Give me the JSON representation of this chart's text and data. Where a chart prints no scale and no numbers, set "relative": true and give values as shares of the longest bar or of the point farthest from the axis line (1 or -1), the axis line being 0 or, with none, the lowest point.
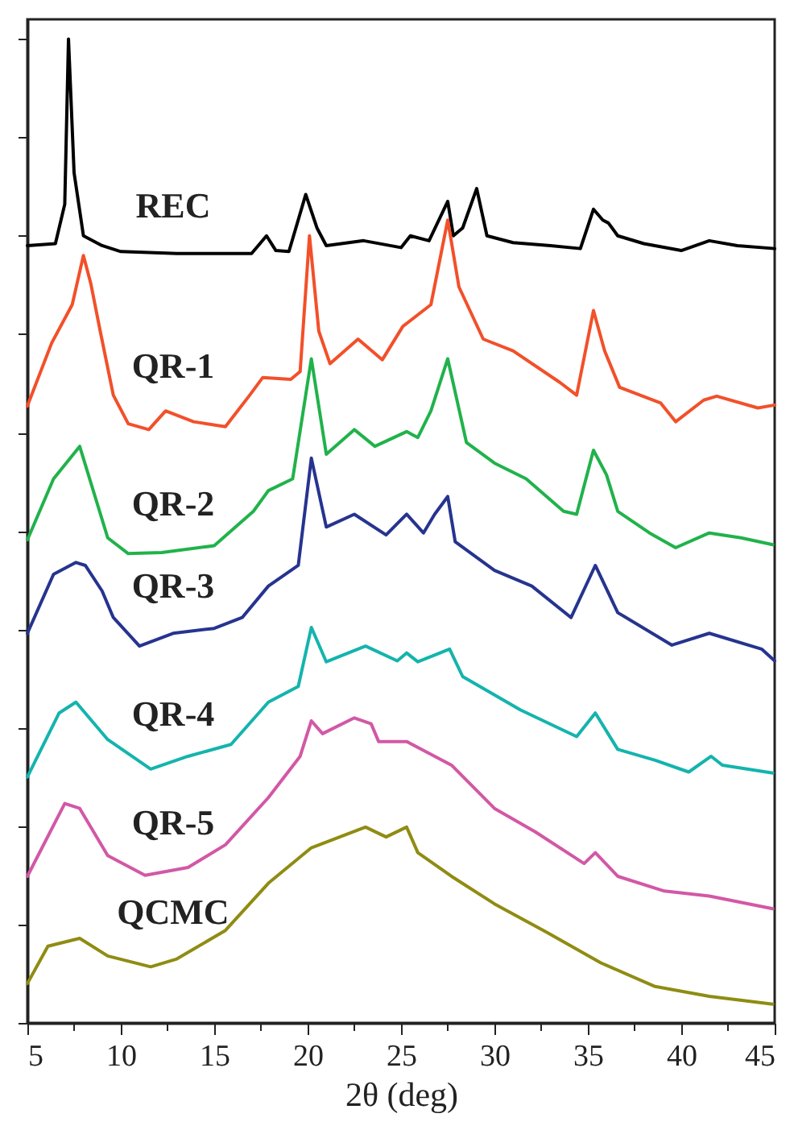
{
  "chart_data": {
    "type": "line",
    "relative": true,
    "xlabel": "2θ (deg)",
    "xlim": [
      5,
      45
    ],
    "xticks": [
      5,
      {
        "value": 7.5,
        "label": null
      },
      10,
      {
        "value": 12.5,
        "label": null
      },
      15,
      {
        "value": 17.5,
        "label": null
      },
      20,
      {
        "value": 22.5,
        "label": null
      },
      25,
      {
        "value": 27.5,
        "label": null
      },
      30,
      {
        "value": 32.5,
        "label": null
      },
      35,
      {
        "value": 37.5,
        "label": null
      },
      40,
      {
        "value": 42.5,
        "label": null
      },
      45
    ],
    "tick_labels": "x",
    "grid": false,
    "marker": "none",
    "line_style": "solid",
    "series": [
      {
        "name": "REC",
        "color": "#000000",
        "x": [
          5,
          6.5,
          7.0,
          7.2,
          7.5,
          8,
          9,
          10,
          13,
          17,
          17.8,
          18.3,
          19,
          19.9,
          20.5,
          21,
          23,
          25,
          25.5,
          26.5,
          27.5,
          27.8,
          28.3,
          29.05,
          29.6,
          31,
          33,
          34.6,
          35.3,
          35.8,
          36.1,
          36.6,
          38,
          40,
          41.5,
          43,
          45
        ],
        "values": [
          0.79,
          0.792,
          0.832,
          1.0,
          0.864,
          0.8,
          0.79,
          0.784,
          0.782,
          0.782,
          0.8,
          0.785,
          0.784,
          0.842,
          0.808,
          0.79,
          0.795,
          0.788,
          0.8,
          0.795,
          0.835,
          0.8,
          0.808,
          0.848,
          0.8,
          0.793,
          0.79,
          0.787,
          0.827,
          0.816,
          0.813,
          0.8,
          0.792,
          0.785,
          0.795,
          0.79,
          0.787
        ]
      },
      {
        "name": "QR-1",
        "color": "#f2502a",
        "x": [
          5,
          6.3,
          7.4,
          8.0,
          8.4,
          8.9,
          9.6,
          10.4,
          11.5,
          12.4,
          13.9,
          15.6,
          16.9,
          17.6,
          19.1,
          19.6,
          20.1,
          20.6,
          21.2,
          22.7,
          24.0,
          25.1,
          26.6,
          27.5,
          28.1,
          29.4,
          31.0,
          33.5,
          34.4,
          35.3,
          35.9,
          36.7,
          38.9,
          39.7,
          41.2,
          41.9,
          44.1,
          45
        ],
        "values": [
          0.627,
          0.691,
          0.73,
          0.78,
          0.751,
          0.703,
          0.638,
          0.609,
          0.603,
          0.622,
          0.611,
          0.606,
          0.638,
          0.656,
          0.654,
          0.662,
          0.8,
          0.703,
          0.67,
          0.695,
          0.674,
          0.708,
          0.73,
          0.816,
          0.748,
          0.695,
          0.683,
          0.651,
          0.638,
          0.724,
          0.683,
          0.646,
          0.63,
          0.611,
          0.633,
          0.637,
          0.625,
          0.628
        ]
      },
      {
        "name": "QR-2",
        "color": "#21b24b",
        "x": [
          5,
          6.4,
          7.8,
          9.3,
          10.4,
          12.2,
          15,
          17.1,
          17.9,
          19.2,
          20.2,
          21,
          22.5,
          23.6,
          25.3,
          25.9,
          26.6,
          27.5,
          28.5,
          30,
          31.7,
          33.7,
          34.4,
          35.3,
          36,
          36.6,
          38.3,
          39.7,
          41.5,
          43.2,
          44.9
        ],
        "values": [
          0.491,
          0.553,
          0.586,
          0.493,
          0.477,
          0.478,
          0.485,
          0.52,
          0.541,
          0.553,
          0.675,
          0.578,
          0.603,
          0.586,
          0.601,
          0.595,
          0.622,
          0.675,
          0.59,
          0.569,
          0.553,
          0.52,
          0.517,
          0.582,
          0.557,
          0.52,
          0.498,
          0.483,
          0.498,
          0.493,
          0.486
        ]
      },
      {
        "name": "QR-3",
        "color": "#26348f",
        "x": [
          5,
          6.4,
          7.6,
          8.1,
          9.0,
          9.6,
          11.0,
          12.8,
          15.0,
          16.5,
          17.9,
          19.5,
          20.2,
          21.0,
          22.5,
          24.2,
          25.3,
          26.2,
          26.8,
          27.5,
          27.9,
          30,
          32,
          34.1,
          35.4,
          36.6,
          39.5,
          41.5,
          44.3,
          45
        ],
        "values": [
          0.396,
          0.456,
          0.468,
          0.465,
          0.439,
          0.412,
          0.383,
          0.396,
          0.401,
          0.412,
          0.444,
          0.465,
          0.574,
          0.504,
          0.517,
          0.496,
          0.517,
          0.498,
          0.517,
          0.535,
          0.489,
          0.46,
          0.444,
          0.412,
          0.465,
          0.417,
          0.384,
          0.396,
          0.38,
          0.368
        ]
      },
      {
        "name": "QR-4",
        "color": "#14b4ad",
        "x": [
          5,
          6.7,
          7.6,
          9.3,
          11.6,
          13.6,
          15.9,
          17.9,
          19.5,
          20.2,
          21.0,
          23.1,
          24.8,
          25.3,
          25.9,
          27.6,
          28.3,
          31.4,
          34.4,
          35.4,
          36.6,
          38.6,
          40.4,
          41.6,
          42.2,
          44.9
        ],
        "values": [
          0.25,
          0.315,
          0.326,
          0.288,
          0.258,
          0.271,
          0.283,
          0.326,
          0.342,
          0.402,
          0.367,
          0.383,
          0.368,
          0.376,
          0.367,
          0.38,
          0.352,
          0.318,
          0.291,
          0.315,
          0.278,
          0.267,
          0.255,
          0.271,
          0.262,
          0.254
        ]
      },
      {
        "name": "QR-5",
        "color": "#d258a6",
        "x": [
          5,
          7.0,
          7.8,
          9.3,
          11.3,
          13.6,
          15.6,
          17.9,
          19.6,
          20.2,
          20.8,
          22.5,
          23.4,
          23.8,
          25.3,
          27.7,
          30.0,
          32.2,
          34.8,
          35.4,
          36.6,
          39.1,
          41.5,
          44.9
        ],
        "values": [
          0.149,
          0.223,
          0.218,
          0.17,
          0.15,
          0.158,
          0.181,
          0.229,
          0.271,
          0.307,
          0.294,
          0.31,
          0.304,
          0.286,
          0.286,
          0.262,
          0.218,
          0.194,
          0.162,
          0.173,
          0.149,
          0.134,
          0.129,
          0.116
        ]
      },
      {
        "name": "QCMC",
        "color": "#8f8c12",
        "x": [
          5,
          6.1,
          7.8,
          9.3,
          11.6,
          13.0,
          15.6,
          17.9,
          20.2,
          23.1,
          24.2,
          25.3,
          25.9,
          27.7,
          30,
          32.8,
          35.7,
          38.6,
          41.5,
          44.9
        ],
        "values": [
          0.04,
          0.078,
          0.086,
          0.068,
          0.057,
          0.065,
          0.094,
          0.142,
          0.178,
          0.199,
          0.189,
          0.199,
          0.173,
          0.149,
          0.121,
          0.092,
          0.061,
          0.037,
          0.027,
          0.019
        ]
      }
    ]
  }
}
